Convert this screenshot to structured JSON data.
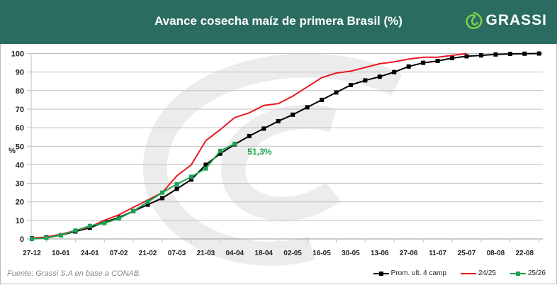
{
  "header": {
    "title": "Avance cosecha maíz de primera Brasil (%)",
    "logo_text": "GRASSI"
  },
  "source": "Fuente: Grassi S.A en base a CONAB.",
  "chart_data": {
    "type": "line",
    "title": "Avance cosecha maíz de primera Brasil (%)",
    "ylabel": "%",
    "ylim": [
      0,
      100
    ],
    "yticks": [
      0,
      10,
      20,
      30,
      40,
      50,
      60,
      70,
      80,
      90,
      100
    ],
    "xtick_labels": [
      "27-12",
      "10-01",
      "24-01",
      "07-02",
      "21-02",
      "07-03",
      "21-03",
      "04-04",
      "18-04",
      "02-05",
      "16-05",
      "30-05",
      "13-06",
      "27-06",
      "11-07",
      "25-07",
      "08-08",
      "22-08"
    ],
    "weeks_per_tick": 2,
    "grid": true,
    "legend_position": "bottom-right",
    "annotation": {
      "text": "51,3%",
      "series": "25/26",
      "week_index": 14
    },
    "series": [
      {
        "name": "Prom. ult. 4 camp",
        "color": "#000000",
        "marker": true,
        "values": [
          0.3,
          0.8,
          2,
          4,
          6,
          9,
          11.5,
          15,
          18.5,
          22,
          27,
          32,
          40,
          46,
          51,
          55.5,
          59.5,
          63.5,
          67,
          71,
          75,
          79,
          83,
          85.5,
          87.5,
          90,
          93,
          95,
          96,
          97.5,
          98.5,
          99,
          99.5,
          99.8,
          99.9,
          100
        ]
      },
      {
        "name": "24/25",
        "color": "#e8191e",
        "marker": false,
        "values": [
          0.5,
          1,
          2.5,
          4.5,
          6.5,
          10,
          13,
          17,
          21,
          25,
          34,
          40,
          53,
          59,
          65.5,
          68,
          72,
          73,
          77,
          82,
          87,
          89.5,
          90.5,
          92.5,
          94.5,
          95.5,
          97,
          98,
          98,
          99,
          100
        ]
      },
      {
        "name": "25/26",
        "color": "#1aa352",
        "marker": true,
        "values": [
          0,
          0.5,
          2,
          4.5,
          7,
          8.5,
          11,
          15,
          20,
          25,
          29.5,
          33.5,
          38,
          47.5,
          51.3
        ]
      }
    ]
  }
}
